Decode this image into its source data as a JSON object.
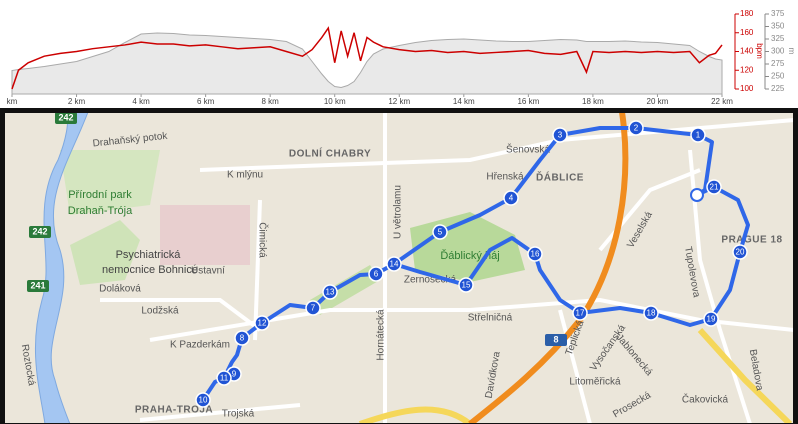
{
  "chart_data": {
    "type": "line",
    "x": [
      0,
      0.2,
      0.5,
      1,
      1.5,
      2,
      2.5,
      3,
      3.5,
      4,
      4.5,
      5,
      5.5,
      6,
      6.5,
      7,
      7.5,
      8,
      8.5,
      9,
      9.3,
      9.6,
      9.8,
      10,
      10.2,
      10.4,
      10.6,
      10.8,
      11,
      11.2,
      11.5,
      12,
      12.5,
      13,
      13.5,
      14,
      14.5,
      15,
      15.5,
      16,
      16.5,
      17,
      17.5,
      17.8,
      18,
      18.5,
      19,
      19.5,
      20,
      20.5,
      21,
      21.3,
      21.6,
      21.8,
      22
    ],
    "xlim": [
      0,
      22
    ],
    "xticks": [
      {
        "value": 0,
        "label": "km"
      },
      {
        "value": 2,
        "label": "2 km"
      },
      {
        "value": 4,
        "label": "4 km"
      },
      {
        "value": 6,
        "label": "6 km"
      },
      {
        "value": 8,
        "label": "8 km"
      },
      {
        "value": 10,
        "label": "10 km"
      },
      {
        "value": 12,
        "label": "12 km"
      },
      {
        "value": 14,
        "label": "14 km"
      },
      {
        "value": 16,
        "label": "16 km"
      },
      {
        "value": 18,
        "label": "18 km"
      },
      {
        "value": 20,
        "label": "20 km"
      },
      {
        "value": 22,
        "label": "22 km"
      }
    ],
    "ylim": [
      100,
      180
    ],
    "yticks": [
      100,
      120,
      140,
      160,
      180
    ],
    "ylabel": "bpm",
    "y2lim": [
      225,
      375
    ],
    "y2ticks": [
      225,
      250,
      275,
      300,
      325,
      350,
      375
    ],
    "y2label": "m",
    "series": [
      {
        "color": "#cc0000",
        "values": [
          100,
          120,
          128,
          135,
          138,
          140,
          143,
          145,
          147,
          150,
          148,
          148,
          146,
          147,
          145,
          143,
          144,
          145,
          140,
          135,
          142,
          155,
          165,
          128,
          162,
          135,
          160,
          130,
          155,
          150,
          145,
          142,
          140,
          141,
          139,
          140,
          138,
          139,
          140,
          141,
          138,
          137,
          140,
          118,
          140,
          139,
          140,
          139,
          140,
          139,
          140,
          128,
          136,
          138,
          147
        ]
      },
      {
        "color": "#aaaaaa",
        "axis": "y2",
        "values": [
          262,
          264,
          266,
          270,
          275,
          280,
          290,
          300,
          318,
          335,
          337,
          336,
          333,
          332,
          330,
          328,
          326,
          324,
          320,
          305,
          280,
          255,
          240,
          230,
          228,
          232,
          240,
          258,
          280,
          295,
          305,
          312,
          318,
          322,
          324,
          325,
          323,
          321,
          320,
          320,
          322,
          324,
          323,
          320,
          320,
          320,
          321,
          319,
          318,
          315,
          312,
          300,
          290,
          285,
          283
        ]
      }
    ]
  },
  "map": {
    "labels": [
      "Drahaňský potok",
      "Přírodní park",
      "Drahaň-Trója",
      "Psychiatrická",
      "nemocnice Bohnice",
      "Ústavní",
      "Doláková",
      "Lodžská",
      "K Pazderkám",
      "Čimická",
      "K mlýnu",
      "DOLNÍ CHABRY",
      "U větrolamu",
      "Ďáblický háj",
      "Zernosecká",
      "Hornátecká",
      "Šenovská",
      "Hřenská",
      "ĎÁBLICE",
      "Střelničná",
      "Teplická",
      "Vysočanská",
      "Jablonecká",
      "Litoměřická",
      "Prosecká",
      "Čakovická",
      "Beladova",
      "Tupolevova",
      "Veselská",
      "PRAGUE 18",
      "Davídkova",
      "Roztocká",
      "PRAHA-TROJA",
      "Trojská"
    ],
    "shields": [
      "242",
      "242",
      "241",
      "8"
    ],
    "markers": [
      "1",
      "2",
      "3",
      "4",
      "5",
      "6",
      "7",
      "8",
      "9",
      "10",
      "11",
      "12",
      "13",
      "14",
      "15",
      "16",
      "17",
      "18",
      "19",
      "20",
      "21"
    ]
  }
}
